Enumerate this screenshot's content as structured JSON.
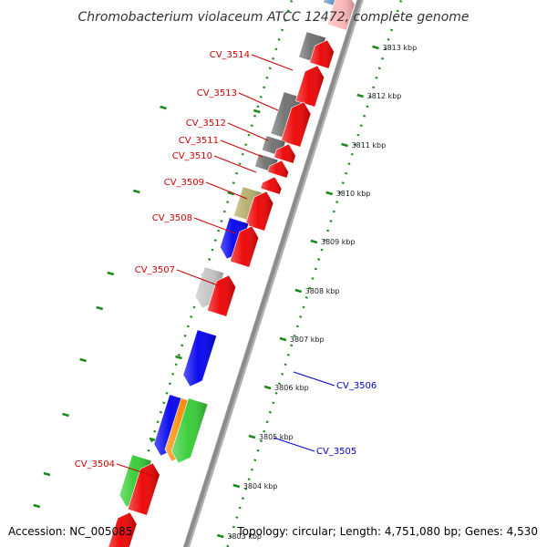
{
  "title": "Chromobacterium violaceum ATCC 12472, complete genome",
  "footer": {
    "accession": "Accession: NC_005085",
    "topology": "Topology: circular; Length: 4,751,080 bp; Genes: 4,530"
  },
  "colors": {
    "forward_label": "#cc0000",
    "reverse_label": "#0000cc",
    "backbone": "#8c8c8c",
    "ruler": "#1a8a1a",
    "red": "#ee0000",
    "blue": "#0000ee",
    "grey": "#6e6e6e",
    "khaki": "#b5ad6b",
    "silver": "#c4c4c4",
    "green": "#33cc33",
    "orange": "#ff8800",
    "steel": "#5a8fc4",
    "pink": "#ffb6b6"
  },
  "ruler": {
    "ticks": [
      {
        "label": "3813 kbp"
      },
      {
        "label": "3812 kbp"
      },
      {
        "label": "3811 kbp"
      },
      {
        "label": "3810 kbp"
      },
      {
        "label": "3809 kbp"
      },
      {
        "label": "3808 kbp"
      },
      {
        "label": "3807 kbp"
      },
      {
        "label": "3806 kbp"
      },
      {
        "label": "3805 kbp"
      },
      {
        "label": "3804 kbp"
      },
      {
        "label": "3803 kbp"
      }
    ]
  },
  "genes": [
    {
      "label": "CV_3514",
      "strand": "forward"
    },
    {
      "label": "CV_3513",
      "strand": "forward"
    },
    {
      "label": "CV_3512",
      "strand": "forward"
    },
    {
      "label": "CV_3511",
      "strand": "forward"
    },
    {
      "label": "CV_3510",
      "strand": "forward"
    },
    {
      "label": "CV_3509",
      "strand": "forward"
    },
    {
      "label": "CV_3508",
      "strand": "forward"
    },
    {
      "label": "CV_3507",
      "strand": "forward"
    },
    {
      "label": "CV_3506",
      "strand": "reverse"
    },
    {
      "label": "CV_3505",
      "strand": "reverse"
    },
    {
      "label": "CV_3504",
      "strand": "forward"
    }
  ]
}
